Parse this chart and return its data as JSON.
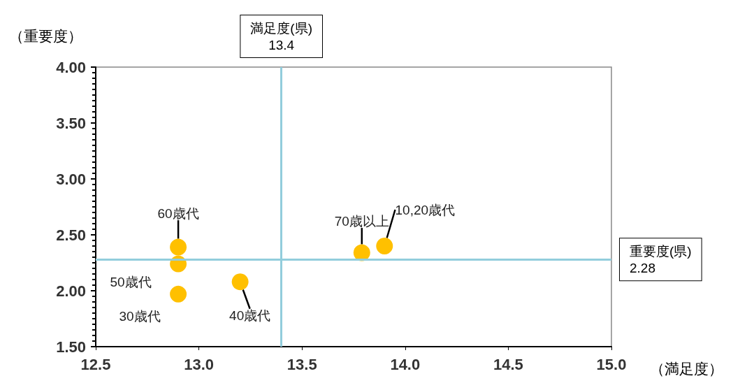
{
  "chart_data": {
    "type": "scatter",
    "xlabel": "（満足度）",
    "ylabel": "（重要度）",
    "x": [
      12.9,
      12.9,
      12.9,
      13.2,
      13.79,
      13.9
    ],
    "values": [
      2.39,
      2.24,
      1.97,
      2.08,
      2.34,
      2.4
    ],
    "color": "#ffc000",
    "marker": "circle",
    "grid": false,
    "xlim": [
      12.5,
      15.0
    ],
    "xticks": [
      12.5,
      {
        "value": 13.0,
        "label": "13.0"
      },
      13.5,
      {
        "value": 14.0,
        "label": "14.0"
      },
      14.5,
      {
        "value": 15.0,
        "label": "15.0"
      }
    ],
    "ylim": [
      1.5,
      4.0
    ],
    "yticks": [
      {
        "value": 1.5,
        "label": "1.50"
      },
      {
        "value": 2.0,
        "label": "2.00"
      },
      {
        "value": 2.5,
        "label": "2.50"
      },
      {
        "value": 3.0,
        "label": "3.00"
      },
      {
        "value": 3.5,
        "label": "3.50"
      },
      {
        "value": 4.0,
        "label": "4.00"
      }
    ],
    "annotations": [
      {
        "text": "60歳代",
        "x": 12.9,
        "y": 2.39
      },
      {
        "text": "50歳代",
        "x": 12.9,
        "y": 2.24
      },
      {
        "text": "30歳代",
        "x": 12.9,
        "y": 1.97
      },
      {
        "text": "40歳代",
        "x": 13.2,
        "y": 2.08
      },
      {
        "text": "70歳以上",
        "x": 13.79,
        "y": 2.34
      },
      {
        "text": "10,20歳代",
        "x": 13.9,
        "y": 2.4
      }
    ],
    "ref_lines": [
      {
        "axis": "x",
        "value": 13.4,
        "label": "満足度(県)\n13.4",
        "color": "#92cddc"
      },
      {
        "axis": "y",
        "value": 2.28,
        "label": "重要度(県)\n2.28",
        "color": "#92cddc"
      }
    ]
  }
}
